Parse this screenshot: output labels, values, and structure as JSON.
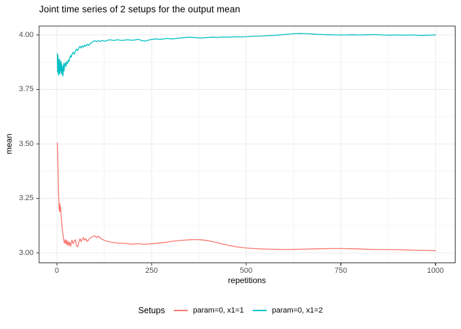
{
  "title": "Joint time series of 2 setups for the output mean",
  "legend": {
    "title": "Setups",
    "entries": [
      {
        "label": "param=0, x1=1",
        "color": "#F8766D"
      },
      {
        "label": "param=0, x1=2",
        "color": "#00BFC4"
      }
    ]
  },
  "colors": {
    "background": "#ffffff",
    "panel_border": "#333333",
    "grid_major": "#EBEBEB",
    "grid_minor": "#F3F3F3",
    "tick_mark": "#333333",
    "tick_text": "#4d4d4d",
    "series_red": "#F8766D",
    "series_teal": "#00BFC4"
  },
  "chart_data": {
    "type": "line",
    "title": "Joint time series of 2 setups for the output mean",
    "xlabel": "repetitions",
    "ylabel": "mean",
    "grid": true,
    "legend_position": "bottom",
    "x_axis": {
      "ticks": [
        0,
        250,
        500,
        750,
        1000
      ],
      "tick_labels": [
        "0",
        "250",
        "500",
        "750",
        "1000"
      ],
      "minor_ticks": [
        125,
        375,
        625,
        875
      ],
      "range": [
        -47,
        1052
      ]
    },
    "y_axis": {
      "ticks": [
        3.0,
        3.25,
        3.5,
        3.75,
        4.0
      ],
      "tick_labels": [
        "3.00",
        "3.25",
        "3.50",
        "3.75",
        "4.00"
      ],
      "minor_ticks": [
        3.125,
        3.375,
        3.625,
        3.875
      ],
      "range": [
        2.954,
        4.041
      ]
    },
    "series": [
      {
        "name": "param=0, x1=1",
        "color": "#F8766D",
        "points": [
          [
            1,
            3.505
          ],
          [
            2,
            3.46
          ],
          [
            3,
            3.38
          ],
          [
            4,
            3.3
          ],
          [
            5,
            3.245
          ],
          [
            6,
            3.2
          ],
          [
            7,
            3.19
          ],
          [
            8,
            3.225
          ],
          [
            9,
            3.19
          ],
          [
            10,
            3.21
          ],
          [
            11,
            3.17
          ],
          [
            12,
            3.155
          ],
          [
            13,
            3.13
          ],
          [
            14,
            3.115
          ],
          [
            15,
            3.1
          ],
          [
            16,
            3.085
          ],
          [
            17,
            3.075
          ],
          [
            18,
            3.06
          ],
          [
            19,
            3.05
          ],
          [
            20,
            3.045
          ],
          [
            22,
            3.06
          ],
          [
            24,
            3.04
          ],
          [
            26,
            3.058
          ],
          [
            28,
            3.035
          ],
          [
            30,
            3.052
          ],
          [
            32,
            3.034
          ],
          [
            34,
            3.048
          ],
          [
            36,
            3.03
          ],
          [
            38,
            3.044
          ],
          [
            40,
            3.058
          ],
          [
            43,
            3.042
          ],
          [
            46,
            3.055
          ],
          [
            49,
            3.06
          ],
          [
            52,
            3.032
          ],
          [
            55,
            3.028
          ],
          [
            58,
            3.048
          ],
          [
            61,
            3.065
          ],
          [
            64,
            3.052
          ],
          [
            67,
            3.062
          ],
          [
            70,
            3.07
          ],
          [
            73,
            3.058
          ],
          [
            76,
            3.065
          ],
          [
            80,
            3.052
          ],
          [
            84,
            3.06
          ],
          [
            88,
            3.067
          ],
          [
            92,
            3.072
          ],
          [
            96,
            3.076
          ],
          [
            100,
            3.078
          ],
          [
            105,
            3.07
          ],
          [
            110,
            3.076
          ],
          [
            115,
            3.068
          ],
          [
            120,
            3.062
          ],
          [
            126,
            3.057
          ],
          [
            132,
            3.053
          ],
          [
            140,
            3.05
          ],
          [
            150,
            3.047
          ],
          [
            160,
            3.045
          ],
          [
            172,
            3.044
          ],
          [
            185,
            3.042
          ],
          [
            200,
            3.04
          ],
          [
            215,
            3.042
          ],
          [
            230,
            3.039
          ],
          [
            245,
            3.041
          ],
          [
            260,
            3.043
          ],
          [
            275,
            3.046
          ],
          [
            290,
            3.049
          ],
          [
            305,
            3.053
          ],
          [
            320,
            3.056
          ],
          [
            335,
            3.058
          ],
          [
            350,
            3.06
          ],
          [
            365,
            3.061
          ],
          [
            380,
            3.06
          ],
          [
            395,
            3.057
          ],
          [
            410,
            3.052
          ],
          [
            425,
            3.046
          ],
          [
            440,
            3.04
          ],
          [
            455,
            3.034
          ],
          [
            470,
            3.029
          ],
          [
            485,
            3.025
          ],
          [
            500,
            3.022
          ],
          [
            520,
            3.02
          ],
          [
            540,
            3.018
          ],
          [
            560,
            3.017
          ],
          [
            580,
            3.016
          ],
          [
            600,
            3.015
          ],
          [
            625,
            3.016
          ],
          [
            650,
            3.017
          ],
          [
            675,
            3.018
          ],
          [
            700,
            3.019
          ],
          [
            725,
            3.02
          ],
          [
            750,
            3.02
          ],
          [
            775,
            3.019
          ],
          [
            800,
            3.018
          ],
          [
            825,
            3.016
          ],
          [
            850,
            3.015
          ],
          [
            875,
            3.015
          ],
          [
            900,
            3.014
          ],
          [
            925,
            3.013
          ],
          [
            950,
            3.012
          ],
          [
            975,
            3.011
          ],
          [
            1000,
            3.01
          ]
        ]
      },
      {
        "name": "param=0, x1=2",
        "color": "#00BFC4",
        "points": [
          [
            1,
            3.915
          ],
          [
            2,
            3.83
          ],
          [
            3,
            3.905
          ],
          [
            4,
            3.815
          ],
          [
            5,
            3.885
          ],
          [
            6,
            3.825
          ],
          [
            7,
            3.89
          ],
          [
            8,
            3.82
          ],
          [
            9,
            3.875
          ],
          [
            10,
            3.835
          ],
          [
            11,
            3.88
          ],
          [
            12,
            3.825
          ],
          [
            13,
            3.865
          ],
          [
            14,
            3.818
          ],
          [
            15,
            3.855
          ],
          [
            16,
            3.812
          ],
          [
            17,
            3.845
          ],
          [
            18,
            3.87
          ],
          [
            19,
            3.835
          ],
          [
            20,
            3.858
          ],
          [
            22,
            3.872
          ],
          [
            24,
            3.855
          ],
          [
            26,
            3.878
          ],
          [
            28,
            3.868
          ],
          [
            30,
            3.885
          ],
          [
            32,
            3.878
          ],
          [
            34,
            3.895
          ],
          [
            36,
            3.905
          ],
          [
            38,
            3.898
          ],
          [
            40,
            3.912
          ],
          [
            43,
            3.92
          ],
          [
            46,
            3.912
          ],
          [
            49,
            3.928
          ],
          [
            52,
            3.935
          ],
          [
            55,
            3.928
          ],
          [
            58,
            3.94
          ],
          [
            61,
            3.948
          ],
          [
            64,
            3.94
          ],
          [
            67,
            3.95
          ],
          [
            70,
            3.944
          ],
          [
            73,
            3.954
          ],
          [
            76,
            3.948
          ],
          [
            80,
            3.958
          ],
          [
            84,
            3.952
          ],
          [
            88,
            3.96
          ],
          [
            92,
            3.965
          ],
          [
            96,
            3.97
          ],
          [
            100,
            3.974
          ],
          [
            105,
            3.97
          ],
          [
            110,
            3.974
          ],
          [
            115,
            3.97
          ],
          [
            120,
            3.975
          ],
          [
            126,
            3.971
          ],
          [
            132,
            3.975
          ],
          [
            140,
            3.978
          ],
          [
            150,
            3.975
          ],
          [
            160,
            3.978
          ],
          [
            172,
            3.975
          ],
          [
            185,
            3.978
          ],
          [
            200,
            3.976
          ],
          [
            215,
            3.98
          ],
          [
            225,
            3.974
          ],
          [
            235,
            3.972
          ],
          [
            245,
            3.978
          ],
          [
            260,
            3.982
          ],
          [
            275,
            3.98
          ],
          [
            290,
            3.984
          ],
          [
            305,
            3.982
          ],
          [
            320,
            3.985
          ],
          [
            335,
            3.988
          ],
          [
            350,
            3.99
          ],
          [
            365,
            3.988
          ],
          [
            380,
            3.986
          ],
          [
            395,
            3.988
          ],
          [
            410,
            3.99
          ],
          [
            425,
            3.989
          ],
          [
            440,
            3.991
          ],
          [
            455,
            3.99
          ],
          [
            470,
            3.992
          ],
          [
            485,
            3.991
          ],
          [
            500,
            3.992
          ],
          [
            520,
            3.994
          ],
          [
            540,
            3.995
          ],
          [
            560,
            3.997
          ],
          [
            580,
            3.999
          ],
          [
            600,
            4.002
          ],
          [
            620,
            4.005
          ],
          [
            640,
            4.007
          ],
          [
            660,
            4.006
          ],
          [
            680,
            4.004
          ],
          [
            700,
            4.002
          ],
          [
            720,
            4.001
          ],
          [
            740,
            4.0
          ],
          [
            760,
            4.0
          ],
          [
            780,
            4.001
          ],
          [
            800,
            4.0
          ],
          [
            820,
            4.001
          ],
          [
            840,
            4.002
          ],
          [
            860,
            4.0
          ],
          [
            880,
            3.999
          ],
          [
            900,
            4.0
          ],
          [
            920,
            3.999
          ],
          [
            940,
            4.0
          ],
          [
            960,
            3.998
          ],
          [
            980,
            3.999
          ],
          [
            1000,
            4.0
          ]
        ]
      }
    ]
  }
}
